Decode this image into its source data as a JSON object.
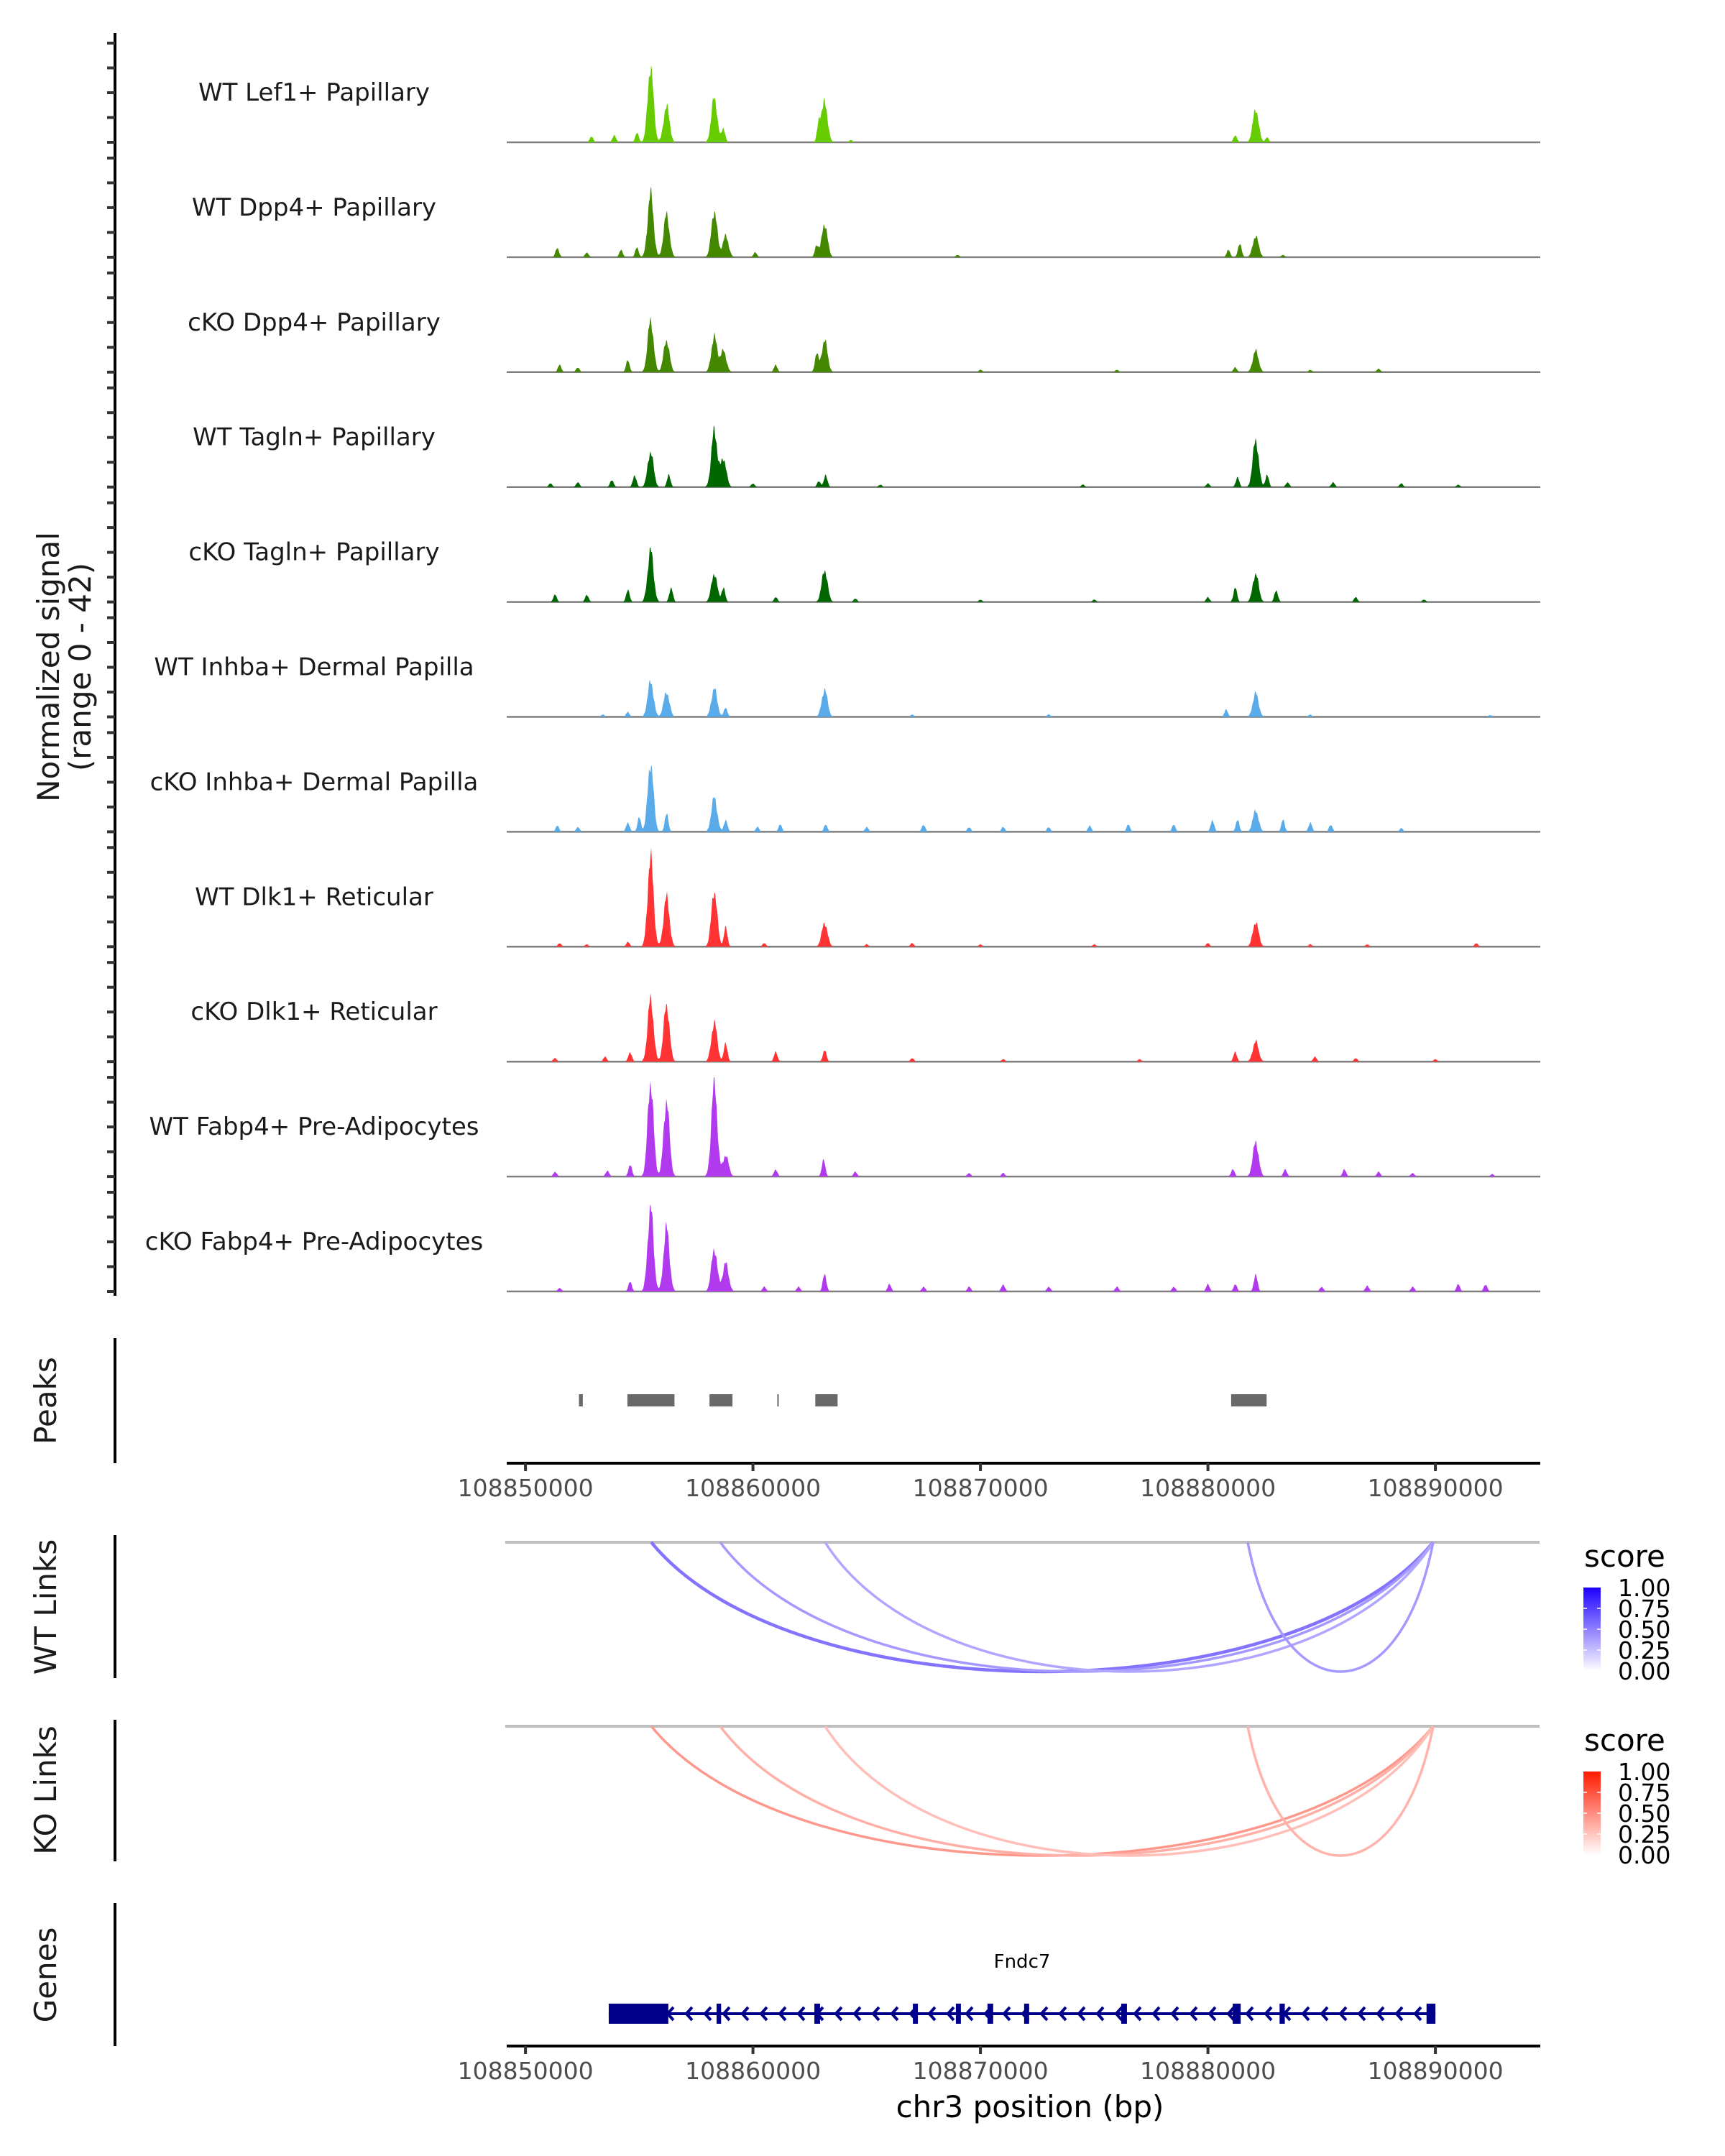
{
  "chart_data": {
    "type": "area",
    "title": "",
    "chromosome": "chr3",
    "xlabel": "chr3 position (bp)",
    "xlim": [
      108849270,
      108894610
    ],
    "xticks": [
      108850000,
      108860000,
      108870000,
      108880000,
      108890000
    ],
    "xtick_labels": [
      "108850000",
      "108860000",
      "108870000",
      "108880000",
      "108890000"
    ],
    "coverage": {
      "ylabel_line1": "Normalized signal",
      "ylabel_line2": "(range 0 - 42)",
      "ylim": [
        0,
        42
      ],
      "tracks": [
        {
          "name": "WT Lef1+ Papillary",
          "color": "#66CC00",
          "peaks": [
            [
              108852900,
              2.5
            ],
            [
              108853900,
              3
            ],
            [
              108854900,
              4
            ],
            [
              108855500,
              32
            ],
            [
              108856200,
              15.5
            ],
            [
              108858300,
              19
            ],
            [
              108858700,
              6
            ],
            [
              108862900,
              8
            ],
            [
              108863150,
              17
            ],
            [
              108864300,
              1
            ],
            [
              108881200,
              3
            ],
            [
              108882100,
              14
            ],
            [
              108882600,
              2
            ]
          ]
        },
        {
          "name": "WT Dpp4+ Papillary",
          "color": "#448800",
          "peaks": [
            [
              108851400,
              4
            ],
            [
              108852700,
              2
            ],
            [
              108854200,
              3
            ],
            [
              108854900,
              4
            ],
            [
              108855500,
              27
            ],
            [
              108856200,
              18
            ],
            [
              108858300,
              19.5
            ],
            [
              108858800,
              9
            ],
            [
              108860100,
              2
            ],
            [
              108862800,
              5
            ],
            [
              108863150,
              14
            ],
            [
              108869000,
              1
            ],
            [
              108880900,
              3
            ],
            [
              108881400,
              6
            ],
            [
              108882100,
              9
            ],
            [
              108883300,
              1
            ]
          ]
        },
        {
          "name": "cKO Dpp4+ Papillary",
          "color": "#448800",
          "peaks": [
            [
              108851500,
              3
            ],
            [
              108852300,
              2
            ],
            [
              108854500,
              5
            ],
            [
              108855500,
              22
            ],
            [
              108856200,
              13.5
            ],
            [
              108858300,
              15
            ],
            [
              108858700,
              9
            ],
            [
              108861000,
              3
            ],
            [
              108862800,
              8
            ],
            [
              108863150,
              13.5
            ],
            [
              108870000,
              1
            ],
            [
              108876000,
              1
            ],
            [
              108881200,
              2
            ],
            [
              108882100,
              9
            ],
            [
              108884500,
              1
            ],
            [
              108887500,
              1.5
            ]
          ]
        },
        {
          "name": "WT Tagln+ Papillary",
          "color": "#006600",
          "peaks": [
            [
              108851100,
              1.5
            ],
            [
              108852300,
              2
            ],
            [
              108853800,
              3
            ],
            [
              108854800,
              5
            ],
            [
              108855500,
              15
            ],
            [
              108856300,
              5
            ],
            [
              108858300,
              24
            ],
            [
              108858700,
              12
            ],
            [
              108860000,
              1.5
            ],
            [
              108862900,
              2.5
            ],
            [
              108863200,
              5
            ],
            [
              108865600,
              1
            ],
            [
              108874500,
              1
            ],
            [
              108880000,
              1.5
            ],
            [
              108881300,
              4
            ],
            [
              108882100,
              20
            ],
            [
              108882600,
              5
            ],
            [
              108883500,
              2
            ],
            [
              108885500,
              2
            ],
            [
              108888500,
              1.5
            ],
            [
              108891000,
              1
            ]
          ]
        },
        {
          "name": "cKO Tagln+ Papillary",
          "color": "#006600",
          "peaks": [
            [
              108851300,
              3
            ],
            [
              108852700,
              3
            ],
            [
              108854500,
              5
            ],
            [
              108855500,
              22
            ],
            [
              108856400,
              6
            ],
            [
              108858300,
              12
            ],
            [
              108858700,
              6
            ],
            [
              108861000,
              2
            ],
            [
              108863150,
              13.5
            ],
            [
              108864500,
              1.5
            ],
            [
              108870000,
              1
            ],
            [
              108875000,
              1
            ],
            [
              108880000,
              2
            ],
            [
              108881200,
              6
            ],
            [
              108882100,
              12
            ],
            [
              108883000,
              5
            ],
            [
              108886500,
              2
            ],
            [
              108889500,
              1
            ]
          ]
        },
        {
          "name": "WT Inhba+ Dermal Papilla",
          "color": "#5AABEA",
          "peaks": [
            [
              108853400,
              1
            ],
            [
              108854500,
              2
            ],
            [
              108855500,
              15
            ],
            [
              108856200,
              10.5
            ],
            [
              108858300,
              12
            ],
            [
              108858800,
              4
            ],
            [
              108863150,
              11.5
            ],
            [
              108867000,
              1
            ],
            [
              108873000,
              1
            ],
            [
              108880800,
              3
            ],
            [
              108882100,
              10
            ],
            [
              108884500,
              1
            ],
            [
              108892400,
              0.8
            ]
          ]
        },
        {
          "name": "cKO Inhba+ Dermal Papilla",
          "color": "#5AABEA",
          "peaks": [
            [
              108851400,
              2.5
            ],
            [
              108852300,
              2
            ],
            [
              108854500,
              4
            ],
            [
              108855000,
              6
            ],
            [
              108855500,
              29
            ],
            [
              108856200,
              8
            ],
            [
              108858300,
              14.5
            ],
            [
              108858800,
              5
            ],
            [
              108860200,
              2
            ],
            [
              108861200,
              3
            ],
            [
              108863200,
              3
            ],
            [
              108865000,
              2
            ],
            [
              108867500,
              3
            ],
            [
              108869500,
              2
            ],
            [
              108871000,
              2
            ],
            [
              108873000,
              2
            ],
            [
              108874800,
              2.5
            ],
            [
              108876500,
              3
            ],
            [
              108878500,
              3
            ],
            [
              108880200,
              5
            ],
            [
              108881300,
              5
            ],
            [
              108882100,
              9
            ],
            [
              108883300,
              5
            ],
            [
              108884500,
              4
            ],
            [
              108885400,
              3
            ],
            [
              108888500,
              1.5
            ]
          ]
        },
        {
          "name": "WT Dlk1+ Reticular",
          "color": "#FF3333",
          "peaks": [
            [
              108851500,
              1.5
            ],
            [
              108852700,
              1
            ],
            [
              108854500,
              2
            ],
            [
              108855500,
              38
            ],
            [
              108856200,
              21
            ],
            [
              108858300,
              23.5
            ],
            [
              108858800,
              8
            ],
            [
              108860500,
              1.5
            ],
            [
              108863150,
              10
            ],
            [
              108865000,
              1
            ],
            [
              108867000,
              1.5
            ],
            [
              108870000,
              1
            ],
            [
              108875000,
              1
            ],
            [
              108880000,
              1.5
            ],
            [
              108882100,
              10.5
            ],
            [
              108884500,
              1
            ],
            [
              108887000,
              1
            ],
            [
              108891800,
              1.5
            ]
          ]
        },
        {
          "name": "cKO Dlk1+ Reticular",
          "color": "#FF3333",
          "peaks": [
            [
              108851300,
              1.5
            ],
            [
              108853500,
              2
            ],
            [
              108854600,
              4
            ],
            [
              108855500,
              26.5
            ],
            [
              108856200,
              24
            ],
            [
              108858300,
              16.5
            ],
            [
              108858800,
              8
            ],
            [
              108861000,
              4
            ],
            [
              108863150,
              5
            ],
            [
              108867000,
              1.5
            ],
            [
              108871000,
              1
            ],
            [
              108877000,
              1
            ],
            [
              108881200,
              4
            ],
            [
              108882100,
              8.5
            ],
            [
              108884700,
              2
            ],
            [
              108886500,
              1.5
            ],
            [
              108890000,
              1
            ]
          ]
        },
        {
          "name": "WT Fabp4+ Pre-Adipocytes",
          "color": "#B23AEE",
          "peaks": [
            [
              108851300,
              2
            ],
            [
              108853600,
              2.5
            ],
            [
              108854600,
              5
            ],
            [
              108855500,
              40
            ],
            [
              108856200,
              32
            ],
            [
              108858300,
              40
            ],
            [
              108858800,
              9
            ],
            [
              108861000,
              3
            ],
            [
              108863100,
              7
            ],
            [
              108864500,
              2
            ],
            [
              108869500,
              1.5
            ],
            [
              108871000,
              1.5
            ],
            [
              108881100,
              3
            ],
            [
              108882100,
              14.5
            ],
            [
              108883400,
              3
            ],
            [
              108886000,
              3
            ],
            [
              108887500,
              2
            ],
            [
              108889000,
              1.5
            ],
            [
              108892500,
              1
            ]
          ]
        },
        {
          "name": "cKO Fabp4+ Pre-Adipocytes",
          "color": "#B23AEE",
          "peaks": [
            [
              108851500,
              1.5
            ],
            [
              108854600,
              4
            ],
            [
              108855500,
              35.5
            ],
            [
              108856200,
              27
            ],
            [
              108858300,
              18
            ],
            [
              108858800,
              12
            ],
            [
              108860500,
              2
            ],
            [
              108862000,
              2
            ],
            [
              108863150,
              7.5
            ],
            [
              108866000,
              3
            ],
            [
              108867500,
              2
            ],
            [
              108869500,
              2
            ],
            [
              108871000,
              3
            ],
            [
              108873000,
              2
            ],
            [
              108876000,
              2
            ],
            [
              108878500,
              2
            ],
            [
              108880000,
              3
            ],
            [
              108881200,
              3
            ],
            [
              108882100,
              7.5
            ],
            [
              108885000,
              2
            ],
            [
              108887000,
              2.5
            ],
            [
              108889000,
              2
            ],
            [
              108891000,
              3
            ],
            [
              108892200,
              3
            ]
          ]
        }
      ]
    },
    "peaks": {
      "label": "Peaks",
      "color": "#696969",
      "regions": [
        [
          108852350,
          108852520
        ],
        [
          108854480,
          108856550
        ],
        [
          108858090,
          108859100
        ],
        [
          108861070,
          108861120
        ],
        [
          108862740,
          108863720
        ],
        [
          108881020,
          108882580
        ]
      ]
    },
    "links": [
      {
        "label": "WT Links",
        "legend_title": "score",
        "low_color": "#FFFFFF",
        "high_color": "#1E00FF",
        "arcs": [
          {
            "start": 108855530,
            "end": 108889900,
            "score": 0.55
          },
          {
            "start": 108858560,
            "end": 108889900,
            "score": 0.4
          },
          {
            "start": 108863170,
            "end": 108889900,
            "score": 0.35
          },
          {
            "start": 108881750,
            "end": 108889900,
            "score": 0.4
          }
        ]
      },
      {
        "label": "KO Links",
        "legend_title": "score",
        "low_color": "#FFFFFF",
        "high_color": "#FF1A00",
        "arcs": [
          {
            "start": 108855530,
            "end": 108889900,
            "score": 0.45
          },
          {
            "start": 108858560,
            "end": 108889900,
            "score": 0.35
          },
          {
            "start": 108863170,
            "end": 108889900,
            "score": 0.28
          },
          {
            "start": 108881750,
            "end": 108889900,
            "score": 0.33
          }
        ]
      }
    ],
    "legend_ticks": [
      "1.00",
      "0.75",
      "0.50",
      "0.25",
      "0.00"
    ],
    "genes": {
      "label": "Genes",
      "color": "#00008B",
      "items": [
        {
          "name": "Fndc7",
          "strand": "-",
          "start": 108853660,
          "end": 108890000,
          "exons": [
            [
              108853660,
              108856280
            ],
            [
              108858400,
              108858600
            ],
            [
              108862700,
              108862950
            ],
            [
              108867030,
              108867250
            ],
            [
              108868920,
              108869140
            ],
            [
              108870310,
              108870560
            ],
            [
              108871920,
              108872140
            ],
            [
              108876190,
              108876440
            ],
            [
              108881090,
              108881440
            ],
            [
              108883150,
              108883380
            ],
            [
              108889610,
              108890000
            ]
          ]
        }
      ]
    }
  }
}
